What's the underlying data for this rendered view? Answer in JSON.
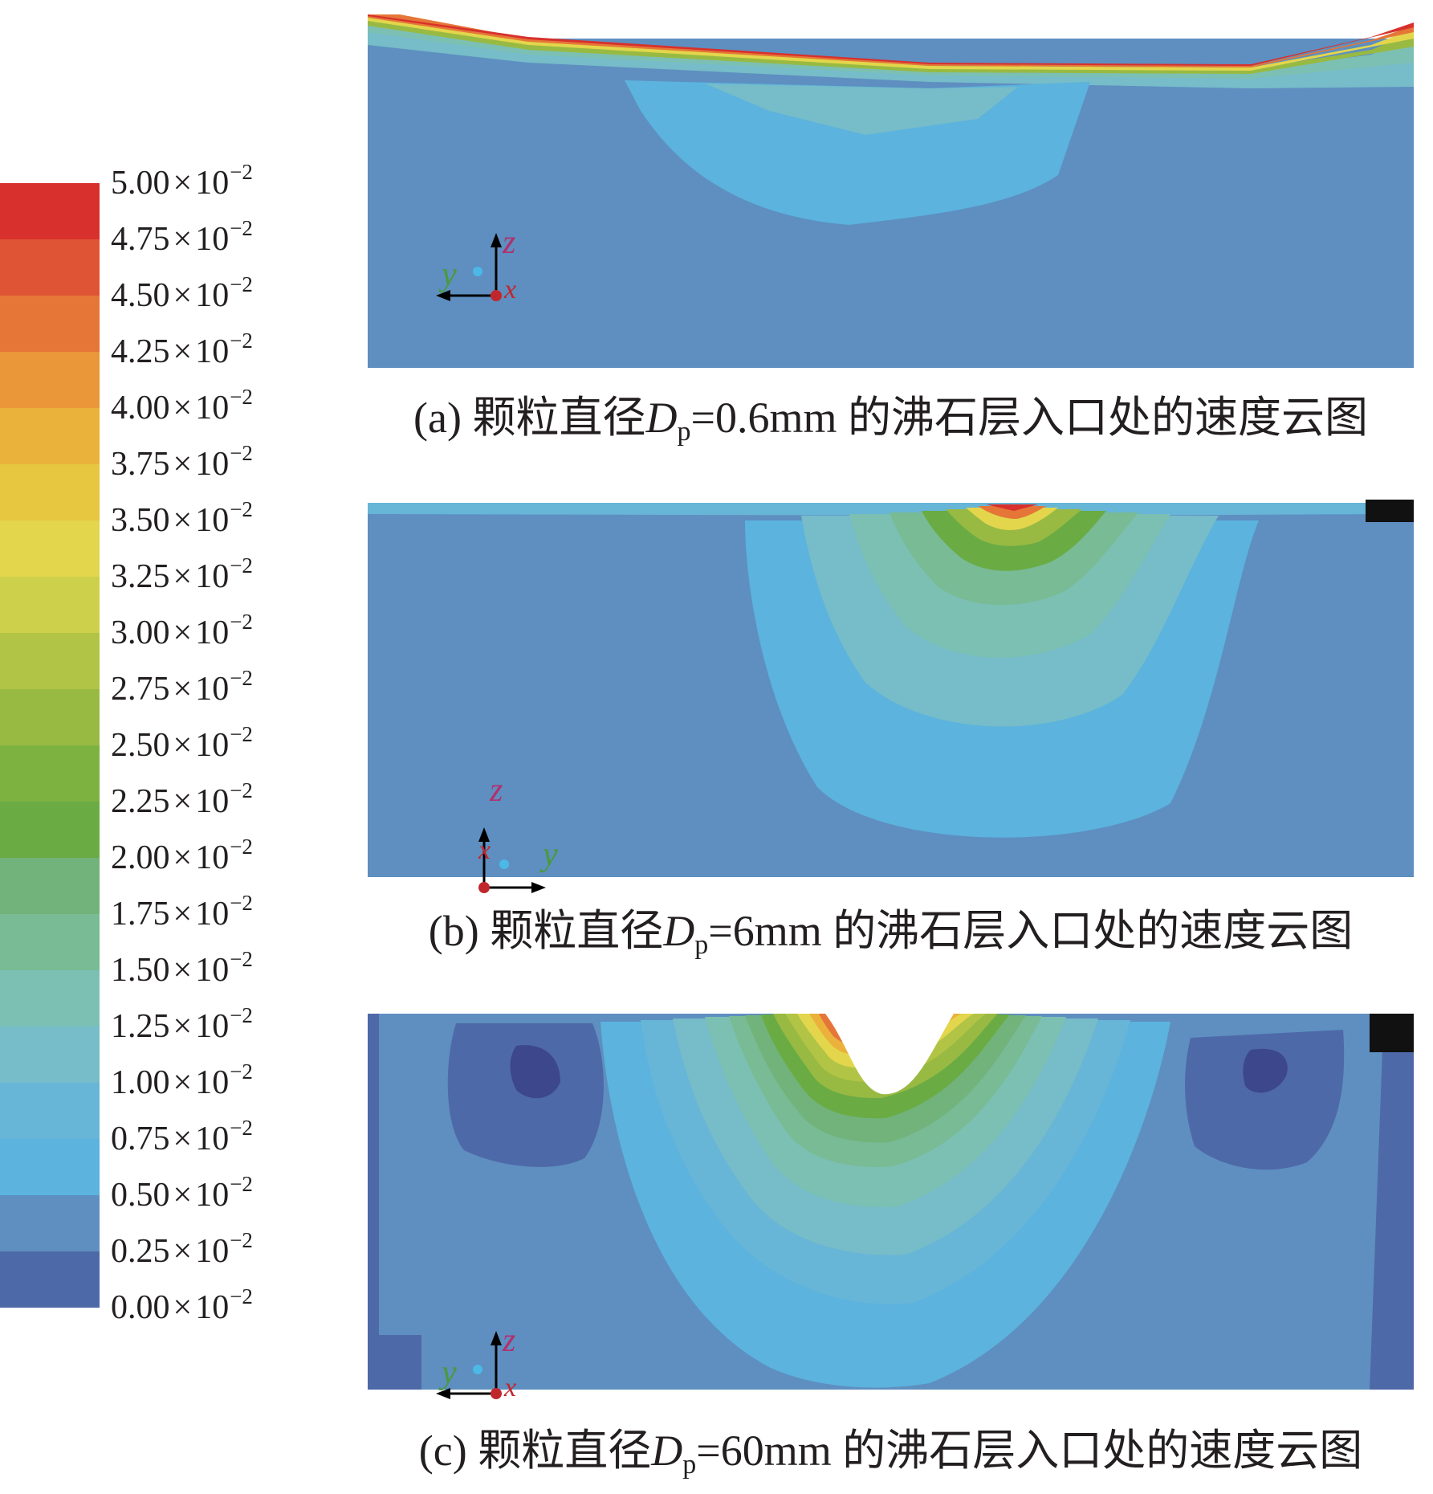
{
  "legend": {
    "mantissas": [
      "5.00",
      "4.75",
      "4.50",
      "4.25",
      "4.00",
      "3.75",
      "3.50",
      "3.25",
      "3.00",
      "2.75",
      "2.50",
      "2.25",
      "2.00",
      "1.75",
      "1.50",
      "1.25",
      "1.00",
      "0.75",
      "0.50",
      "0.25",
      "0.00"
    ],
    "times": "×",
    "base": "10",
    "exponent": "−2",
    "colors": [
      "#d8302c",
      "#df5434",
      "#e57637",
      "#e99738",
      "#ebb23b",
      "#e7c640",
      "#e3d64c",
      "#cdd04a",
      "#b2c445",
      "#98ba42",
      "#7db241",
      "#6aab44",
      "#71b37a",
      "#78bb94",
      "#7cc0b4",
      "#76bcc9",
      "#67b5d7",
      "#5bb3de",
      "#5e8fc0",
      "#4e69a8",
      "#3d478c"
    ]
  },
  "panels": [
    {
      "label": "(a)",
      "text1": "颗粒直径",
      "dp": "D",
      "dp_sub": "p",
      "text2": "=0.6mm 的沸石层入口处的速度云图",
      "axes": {
        "up": "z",
        "horiz": "y",
        "point": "x"
      }
    },
    {
      "label": "(b)",
      "text1": "颗粒直径",
      "dp": "D",
      "dp_sub": "p",
      "text2": "=6mm 的沸石层入口处的速度云图",
      "axes": {
        "up": "z",
        "horiz": "y",
        "point": "x"
      }
    },
    {
      "label": "(c)",
      "text1": "颗粒直径",
      "dp": "D",
      "dp_sub": "p",
      "text2": "=60mm 的沸石层入口处的速度云图",
      "axes": {
        "up": "z",
        "horiz": "y",
        "point": "x"
      }
    }
  ]
}
